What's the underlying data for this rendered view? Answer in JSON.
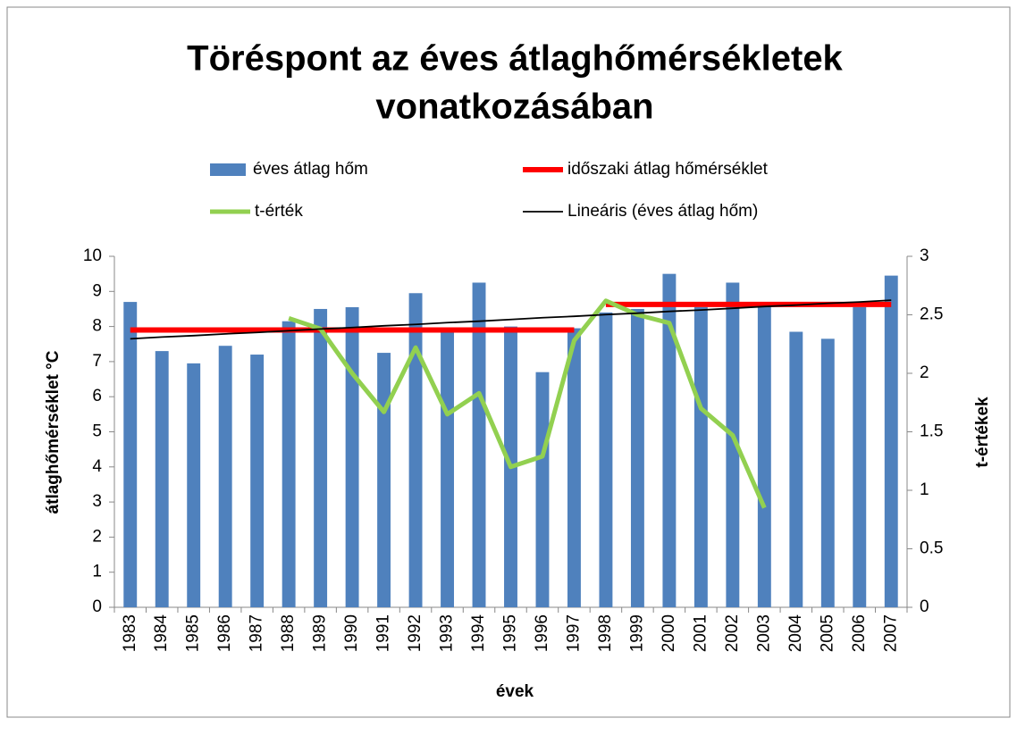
{
  "chart_data": {
    "type": "bar",
    "title": [
      "Töréspont az éves átlaghőmérsékletek",
      "vonatkozásában"
    ],
    "x_label": "évek",
    "y_label": "átlaghőmérséklet °C",
    "y2_label": "t-értékek",
    "categories": [
      "1983",
      "1984",
      "1985",
      "1986",
      "1987",
      "1988",
      "1989",
      "1990",
      "1991",
      "1992",
      "1993",
      "1994",
      "1995",
      "1996",
      "1997",
      "1998",
      "1999",
      "2000",
      "2001",
      "2002",
      "2003",
      "2004",
      "2005",
      "2006",
      "2007"
    ],
    "series": [
      {
        "name": "éves átlag hőm",
        "type": "bar",
        "color": "#4f81bd",
        "values": [
          8.7,
          7.3,
          6.95,
          7.45,
          7.2,
          8.15,
          8.5,
          8.55,
          7.25,
          8.95,
          7.9,
          9.25,
          8.0,
          6.7,
          7.95,
          8.4,
          8.5,
          9.5,
          8.55,
          9.25,
          8.6,
          7.85,
          7.65,
          8.55,
          9.45
        ]
      },
      {
        "name": "időszaki átlag hőmérséklet",
        "type": "step",
        "color": "#ff0000",
        "values": [
          7.9,
          7.9,
          7.9,
          7.9,
          7.9,
          7.9,
          7.9,
          7.9,
          7.9,
          7.9,
          7.9,
          7.9,
          7.9,
          7.9,
          7.9,
          8.63,
          8.63,
          8.63,
          8.63,
          8.63,
          8.63,
          8.63,
          8.63,
          8.63,
          8.63
        ]
      },
      {
        "name": "t-érték",
        "type": "line",
        "color": "#92d050",
        "axis": "y2",
        "values": [
          null,
          null,
          null,
          null,
          null,
          2.47,
          2.38,
          2.0,
          1.67,
          2.22,
          1.65,
          1.83,
          1.2,
          1.29,
          2.28,
          2.62,
          2.5,
          2.43,
          1.7,
          1.47,
          0.85,
          null,
          null,
          null,
          null
        ]
      },
      {
        "name": "Lineáris (éves átlag hőm)",
        "type": "line",
        "color": "#000000",
        "values": [
          7.65,
          7.7,
          7.74,
          7.79,
          7.83,
          7.88,
          7.93,
          7.97,
          8.02,
          8.06,
          8.11,
          8.15,
          8.2,
          8.25,
          8.29,
          8.34,
          8.38,
          8.43,
          8.47,
          8.52,
          8.57,
          8.61,
          8.66,
          8.7,
          8.75
        ]
      }
    ],
    "ylim": [
      0,
      10
    ],
    "yticks": [
      0,
      1,
      2,
      3,
      4,
      5,
      6,
      7,
      8,
      9,
      10
    ],
    "y2lim": [
      0,
      3
    ],
    "y2ticks": [
      0,
      0.5,
      1,
      1.5,
      2,
      2.5,
      3
    ]
  }
}
